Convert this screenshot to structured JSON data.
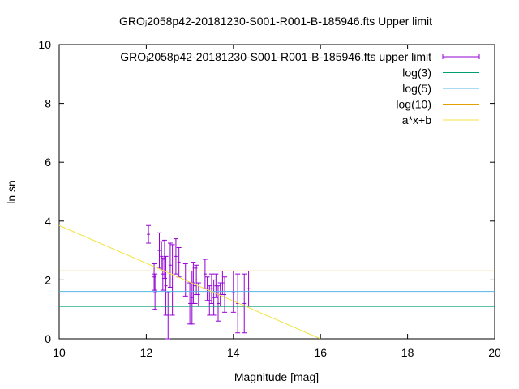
{
  "chart_data": {
    "type": "scatter",
    "title": "GROⱼ2058p42-20181230-S001-R001-B-185946.fts Upper limit",
    "xlabel": "Magnitude [mag]",
    "ylabel": "ln sn",
    "xlim": [
      10,
      20
    ],
    "ylim": [
      0,
      10
    ],
    "x_ticks": [
      "10",
      "12",
      "14",
      "16",
      "18",
      "20"
    ],
    "y_ticks": [
      "0",
      "2",
      "4",
      "6",
      "8",
      "10"
    ],
    "grid": false,
    "legend_position": "top-right",
    "colors": {
      "errorbars": "#9400d3",
      "log3": "#009e73",
      "log5": "#56b4e9",
      "log10": "#e69f00",
      "fit": "#f0e442"
    },
    "series": [
      {
        "name": "GROⱼ2058p42-20181230-S001-R001-B-185946.fts upper limit",
        "kind": "errorbar",
        "points": [
          {
            "x": 12.05,
            "y": 3.55,
            "err": 0.3
          },
          {
            "x": 12.18,
            "y": 2.1,
            "err": 0.45
          },
          {
            "x": 12.2,
            "y": 1.6,
            "err": 0.6
          },
          {
            "x": 12.3,
            "y": 3.0,
            "err": 0.6
          },
          {
            "x": 12.35,
            "y": 2.8,
            "err": 0.5
          },
          {
            "x": 12.38,
            "y": 2.2,
            "err": 0.55
          },
          {
            "x": 12.42,
            "y": 2.7,
            "err": 0.65
          },
          {
            "x": 12.45,
            "y": 1.8,
            "err": 1.0
          },
          {
            "x": 12.5,
            "y": 0.8,
            "err": 0.8
          },
          {
            "x": 12.55,
            "y": 2.5,
            "err": 0.75
          },
          {
            "x": 12.6,
            "y": 2.0,
            "err": 1.2
          },
          {
            "x": 12.68,
            "y": 2.8,
            "err": 0.6
          },
          {
            "x": 12.75,
            "y": 2.6,
            "err": 0.5
          },
          {
            "x": 12.9,
            "y": 2.0,
            "err": 0.55
          },
          {
            "x": 13.0,
            "y": 1.2,
            "err": 0.7
          },
          {
            "x": 13.05,
            "y": 1.4,
            "err": 0.9
          },
          {
            "x": 13.08,
            "y": 1.9,
            "err": 0.7
          },
          {
            "x": 13.12,
            "y": 1.8,
            "err": 0.6
          },
          {
            "x": 13.15,
            "y": 2.0,
            "err": 0.5
          },
          {
            "x": 13.2,
            "y": 1.5,
            "err": 0.4
          },
          {
            "x": 13.35,
            "y": 2.2,
            "err": 0.5
          },
          {
            "x": 13.4,
            "y": 1.7,
            "err": 0.4
          },
          {
            "x": 13.45,
            "y": 1.3,
            "err": 0.5
          },
          {
            "x": 13.5,
            "y": 1.7,
            "err": 0.5
          },
          {
            "x": 13.55,
            "y": 1.4,
            "err": 0.6
          },
          {
            "x": 13.6,
            "y": 1.8,
            "err": 0.4
          },
          {
            "x": 13.65,
            "y": 1.2,
            "err": 0.6
          },
          {
            "x": 13.7,
            "y": 1.5,
            "err": 0.4
          },
          {
            "x": 13.75,
            "y": 1.9,
            "err": 0.4
          },
          {
            "x": 13.8,
            "y": 1.5,
            "err": 0.6
          },
          {
            "x": 14.0,
            "y": 1.6,
            "err": 0.7
          },
          {
            "x": 14.1,
            "y": 1.2,
            "err": 1.0
          },
          {
            "x": 14.25,
            "y": 1.2,
            "err": 1.0
          },
          {
            "x": 14.35,
            "y": 1.7,
            "err": 0.6
          }
        ]
      },
      {
        "name": "log(3)",
        "kind": "hline",
        "y": 1.0986,
        "x_range": [
          10,
          20
        ]
      },
      {
        "name": "log(5)",
        "kind": "hline",
        "y": 1.6094,
        "x_range": [
          10,
          20
        ]
      },
      {
        "name": "log(10)",
        "kind": "hline",
        "y": 2.3026,
        "x_range": [
          10,
          20
        ]
      },
      {
        "name": "a*x+b",
        "kind": "line",
        "x": [
          10,
          16
        ],
        "y": [
          3.85,
          0.0
        ]
      }
    ]
  }
}
